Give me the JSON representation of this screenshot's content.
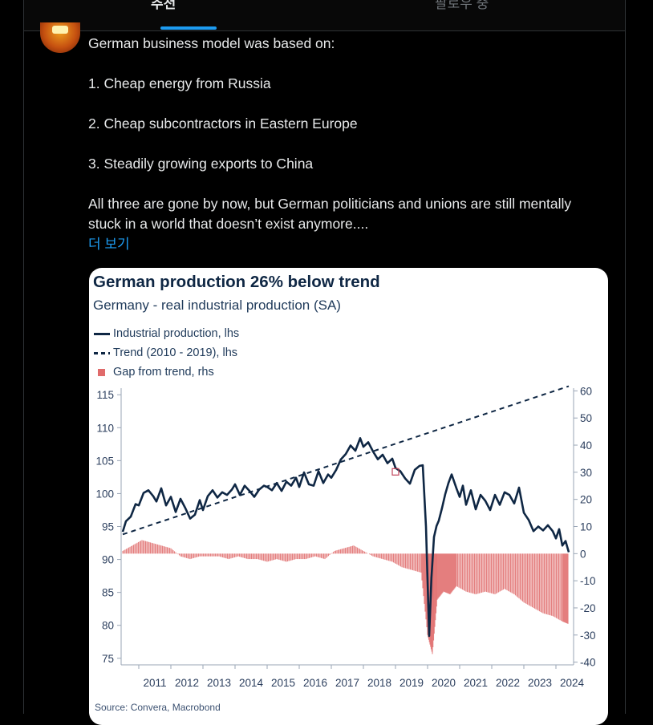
{
  "tabs": [
    {
      "label": "추천",
      "active": true
    },
    {
      "label": "팔로우 중",
      "active": false
    }
  ],
  "tweet": {
    "lines": [
      "German business model was based on:",
      "1. Cheap energy from Russia",
      "2. Cheap subcontractors in Eastern Europe",
      "3. Steadily growing exports to China",
      "All three are gone by now, but German politicians and unions are still mentally stuck in a world that doesn’t exist anymore...."
    ],
    "show_more": "더 보기"
  },
  "colors": {
    "accent": "#1d9bf0",
    "line": "#0f2744",
    "gap": "#e06b6b"
  },
  "chart_data": {
    "type": "line",
    "title": "German production 26% below trend",
    "subtitle": "Germany - real industrial production (SA)",
    "source": "Source: Convera, Macrobond",
    "legend": [
      "Industrial production, lhs",
      "Trend (2010 - 2019), lhs",
      "Gap from trend, rhs"
    ],
    "legend_position": "top-left",
    "x_ticks": [
      "2011",
      "2012",
      "2013",
      "2014",
      "2015",
      "2016",
      "2017",
      "2018",
      "2019",
      "2020",
      "2021",
      "2022",
      "2023",
      "2024"
    ],
    "y_left": {
      "ticks": [
        75,
        80,
        85,
        90,
        95,
        100,
        105,
        110,
        115
      ],
      "range": [
        74,
        116
      ]
    },
    "y_right": {
      "ticks": [
        -40,
        -30,
        -20,
        -10,
        0,
        10,
        20,
        30,
        40,
        50,
        60
      ],
      "range": [
        -41,
        61
      ]
    },
    "trend": {
      "start": [
        2010.5,
        93.8
      ],
      "end": [
        2024.4,
        116.3
      ]
    },
    "series": [
      {
        "name": "Industrial production, lhs",
        "x": [
          2010.5,
          2010.6,
          2010.75,
          2010.9,
          2011.0,
          2011.15,
          2011.3,
          2011.45,
          2011.55,
          2011.7,
          2011.85,
          2012.0,
          2012.15,
          2012.3,
          2012.45,
          2012.6,
          2012.75,
          2012.9,
          2013.0,
          2013.15,
          2013.3,
          2013.45,
          2013.6,
          2013.75,
          2013.9,
          2014.0,
          2014.15,
          2014.3,
          2014.45,
          2014.6,
          2014.75,
          2014.9,
          2015.0,
          2015.15,
          2015.3,
          2015.45,
          2015.6,
          2015.75,
          2015.9,
          2016.0,
          2016.15,
          2016.3,
          2016.45,
          2016.6,
          2016.75,
          2016.9,
          2017.0,
          2017.15,
          2017.3,
          2017.45,
          2017.6,
          2017.75,
          2017.9,
          2018.0,
          2018.15,
          2018.3,
          2018.45,
          2018.6,
          2018.75,
          2018.9,
          2019.0,
          2019.15,
          2019.3,
          2019.45,
          2019.6,
          2019.75,
          2019.85,
          2019.95,
          2020.05,
          2020.12,
          2020.2,
          2020.28,
          2020.35,
          2020.45,
          2020.55,
          2020.65,
          2020.75,
          2020.9,
          2021.0,
          2021.1,
          2021.2,
          2021.35,
          2021.5,
          2021.65,
          2021.8,
          2021.95,
          2022.1,
          2022.25,
          2022.4,
          2022.55,
          2022.7,
          2022.85,
          2023.0,
          2023.15,
          2023.3,
          2023.45,
          2023.6,
          2023.75,
          2023.9,
          2024.0,
          2024.1,
          2024.2,
          2024.3,
          2024.4
        ],
        "values": [
          94.2,
          95.8,
          96.5,
          98.4,
          98.2,
          100.1,
          100.5,
          99.6,
          98.8,
          100.8,
          98.2,
          99.5,
          97.2,
          99.2,
          97.8,
          96.2,
          96.8,
          99.0,
          97.5,
          99.6,
          100.5,
          99.4,
          100.2,
          99.8,
          100.6,
          101.4,
          99.8,
          101.2,
          100.4,
          99.5,
          100.6,
          101.2,
          101.0,
          100.5,
          101.6,
          100.4,
          101.8,
          101.2,
          102.4,
          101.0,
          103.2,
          101.4,
          101.2,
          103.4,
          101.6,
          102.9,
          102.4,
          103.6,
          105.2,
          106.0,
          107.3,
          106.5,
          108.4,
          107.1,
          107.8,
          106.4,
          105.2,
          105.9,
          104.6,
          105.3,
          103.9,
          103.4,
          102.3,
          101.5,
          103.6,
          104.2,
          104.3,
          95.0,
          78.4,
          87.2,
          93.4,
          95.1,
          95.9,
          97.8,
          99.9,
          101.6,
          102.9,
          100.8,
          99.5,
          101.2,
          98.3,
          100.5,
          97.6,
          99.8,
          98.9,
          97.5,
          99.8,
          98.3,
          100.2,
          99.8,
          98.5,
          100.9,
          97.1,
          96.0,
          94.3,
          95.0,
          94.4,
          95.2,
          94.3,
          93.2,
          94.6,
          92.1,
          92.8,
          91.1
        ]
      },
      {
        "name": "Gap from trend, rhs",
        "x": [
          2010.5,
          2010.8,
          2011.1,
          2011.4,
          2011.7,
          2012.0,
          2012.3,
          2012.6,
          2012.9,
          2013.2,
          2013.5,
          2013.8,
          2014.1,
          2014.4,
          2014.7,
          2015.0,
          2015.3,
          2015.6,
          2015.9,
          2016.2,
          2016.5,
          2016.8,
          2017.1,
          2017.4,
          2017.7,
          2018.0,
          2018.3,
          2018.6,
          2018.9,
          2019.2,
          2019.5,
          2019.8,
          2020.0,
          2020.15,
          2020.3,
          2020.5,
          2020.7,
          2020.9,
          2021.2,
          2021.5,
          2021.8,
          2022.1,
          2022.4,
          2022.7,
          2023.0,
          2023.3,
          2023.6,
          2023.9,
          2024.2,
          2024.4
        ],
        "values": [
          1,
          3,
          5,
          4,
          3,
          2,
          -1,
          -2,
          -1,
          -1,
          -1,
          -2,
          -1,
          -2,
          -2,
          -3,
          -2,
          -3,
          -2,
          -2,
          -1,
          -2,
          1,
          2,
          3,
          1,
          -1,
          -2,
          -3,
          -5,
          -6,
          -7,
          -30,
          -37,
          -17,
          -14,
          -15,
          -12,
          -14,
          -15,
          -14,
          -15,
          -13,
          -15,
          -18,
          -20,
          -22,
          -23,
          -25,
          -26
        ]
      }
    ]
  }
}
